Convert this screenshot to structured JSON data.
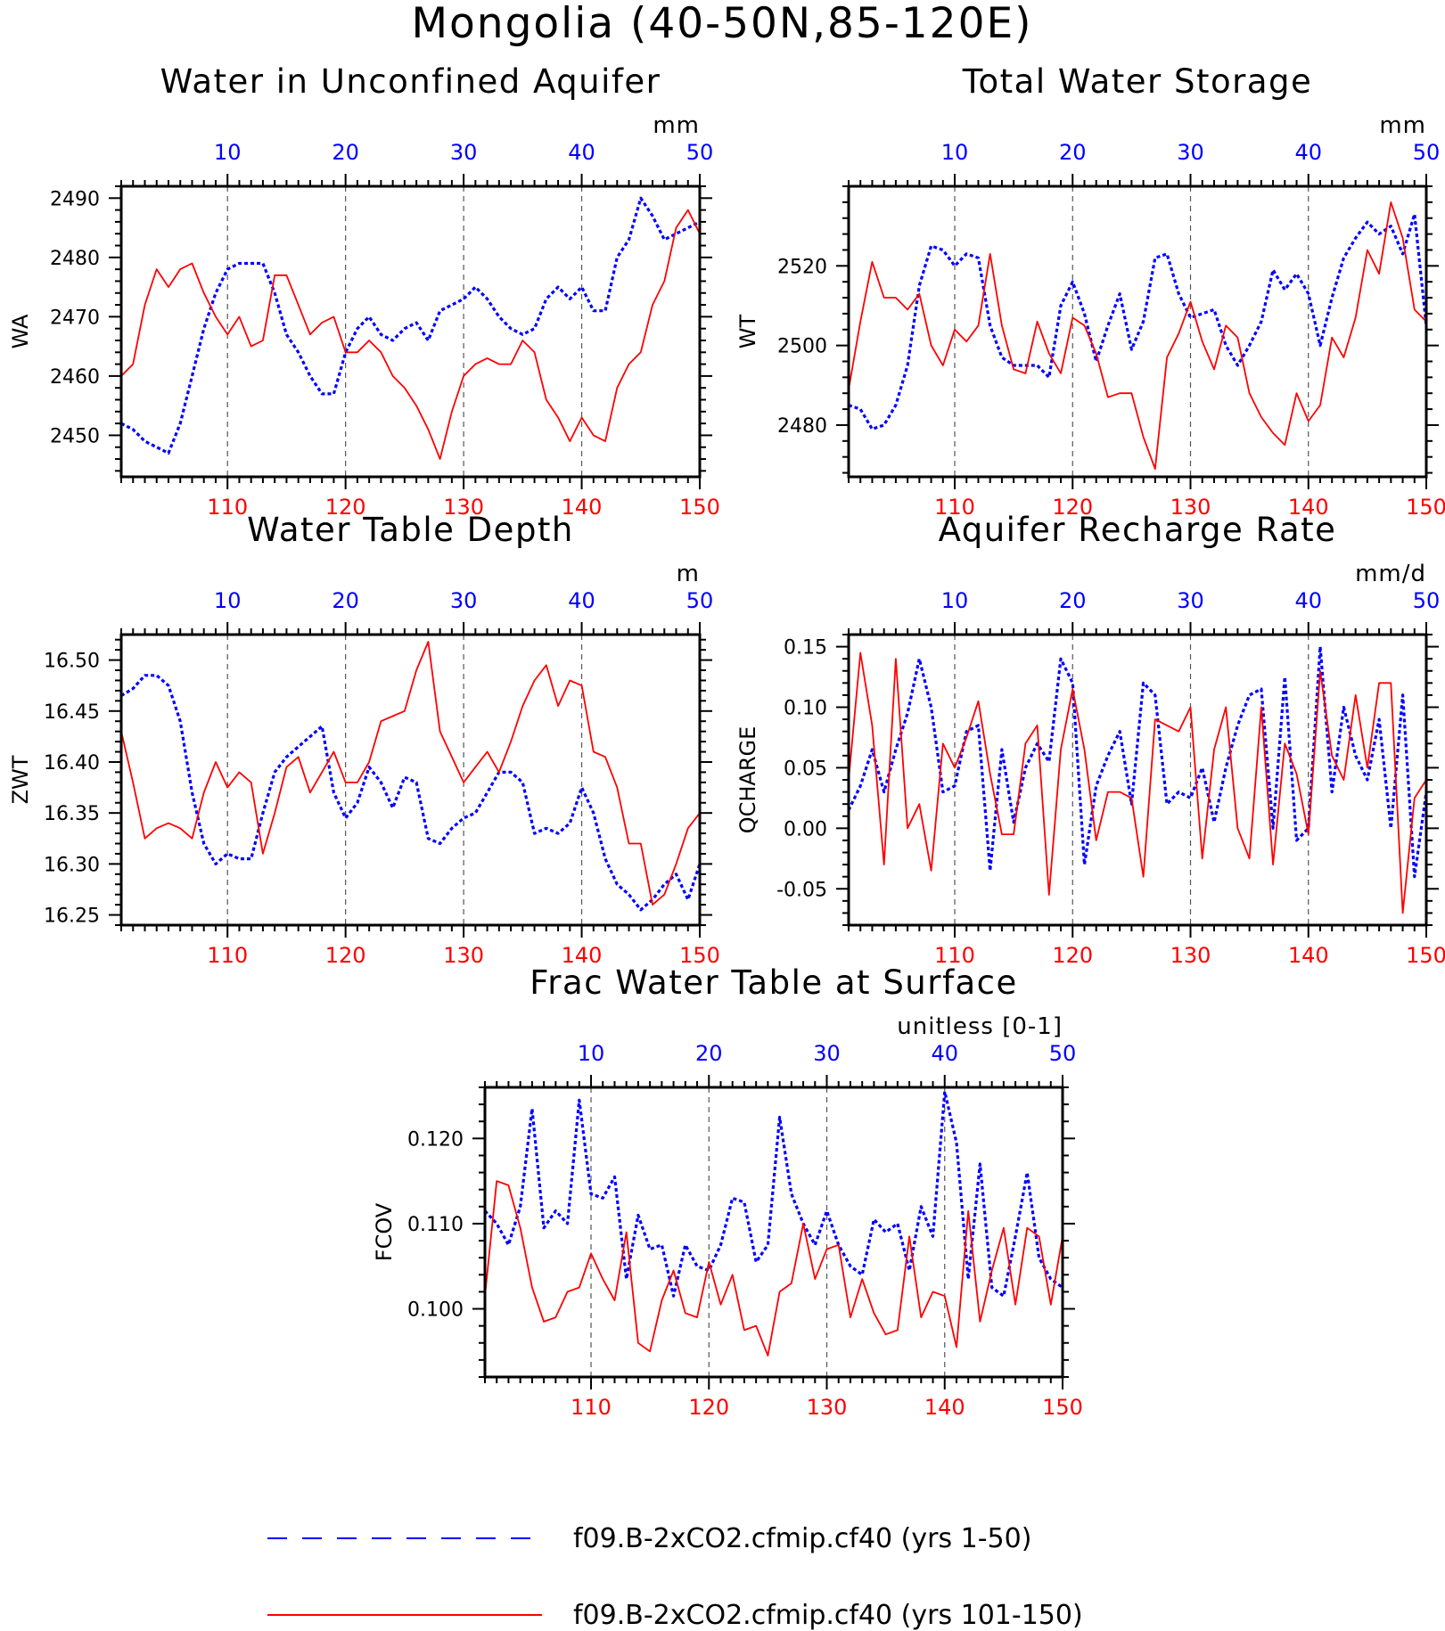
{
  "figure": {
    "title": "Mongolia (40-50N,85-120E)"
  },
  "colors": {
    "series_a": "#0000ff",
    "series_b": "#ff0000",
    "axis": "#000000",
    "grid": "#555555"
  },
  "legend": {
    "items": [
      {
        "label": "f09.B-2xCO2.cfmip.cf40 (yrs 1-50)",
        "style": "dashed",
        "color": "#0000ff"
      },
      {
        "label": "f09.B-2xCO2.cfmip.cf40 (yrs 101-150)",
        "style": "solid",
        "color": "#ff0000"
      }
    ]
  },
  "chart_data": [
    {
      "type": "line",
      "title": "Water in Unconfined Aquifer",
      "ylabel": "WA",
      "units": "mm",
      "top_x": {
        "ticks": [
          10,
          20,
          30,
          40,
          50
        ],
        "range": [
          1,
          50
        ]
      },
      "bottom_x": {
        "ticks": [
          110,
          120,
          130,
          140,
          150
        ],
        "range": [
          101,
          150
        ]
      },
      "ylim": [
        2443,
        2492
      ],
      "yticks": [
        2450,
        2460,
        2470,
        2480,
        2490
      ],
      "ytick_labels": [
        "2450",
        "2460",
        "2470",
        "2480",
        "2490"
      ],
      "grid_x": [
        10,
        20,
        30,
        40
      ],
      "series": [
        {
          "name": "f09.B-2xCO2.cfmip.cf40 (yrs 1-50)",
          "values": [
            2452,
            2451,
            2449,
            2448,
            2447,
            2452,
            2460,
            2468,
            2474,
            2478,
            2479,
            2479,
            2479,
            2474,
            2467,
            2464,
            2460,
            2457,
            2457,
            2464,
            2468,
            2470,
            2467,
            2466,
            2468,
            2469,
            2466,
            2471,
            2472,
            2473,
            2475,
            2473,
            2470,
            2468,
            2467,
            2468,
            2473,
            2475,
            2473,
            2475,
            2471,
            2471,
            2480,
            2483,
            2490,
            2487,
            2483,
            2484,
            2485,
            2486
          ]
        },
        {
          "name": "f09.B-2xCO2.cfmip.cf40 (yrs 101-150)",
          "values": [
            2460,
            2462,
            2472,
            2478,
            2475,
            2478,
            2479,
            2474,
            2470,
            2467,
            2470,
            2465,
            2466,
            2477,
            2477,
            2472,
            2467,
            2469,
            2470,
            2464,
            2464,
            2466,
            2464,
            2460,
            2458,
            2455,
            2451,
            2446,
            2454,
            2460,
            2462,
            2463,
            2462,
            2462,
            2466,
            2464,
            2456,
            2453,
            2449,
            2453,
            2450,
            2449,
            2458,
            2462,
            2464,
            2472,
            2476,
            2485,
            2488,
            2484
          ]
        }
      ]
    },
    {
      "type": "line",
      "title": "Total Water Storage",
      "ylabel": "WT",
      "units": "mm",
      "top_x": {
        "ticks": [
          10,
          20,
          30,
          40,
          50
        ],
        "range": [
          1,
          50
        ]
      },
      "bottom_x": {
        "ticks": [
          110,
          120,
          130,
          140,
          150
        ],
        "range": [
          101,
          150
        ]
      },
      "ylim": [
        2467,
        2540
      ],
      "yticks": [
        2480,
        2500,
        2520
      ],
      "ytick_labels": [
        "2480",
        "2500",
        "2520"
      ],
      "grid_x": [
        10,
        20,
        30,
        40
      ],
      "series": [
        {
          "name": "f09.B-2xCO2.cfmip.cf40 (yrs 1-50)",
          "values": [
            2485,
            2484,
            2479,
            2480,
            2485,
            2495,
            2515,
            2525,
            2524,
            2520,
            2523,
            2522,
            2505,
            2497,
            2495,
            2495,
            2495,
            2492,
            2510,
            2516,
            2508,
            2496,
            2505,
            2513,
            2499,
            2506,
            2522,
            2523,
            2513,
            2507,
            2508,
            2509,
            2500,
            2495,
            2500,
            2506,
            2519,
            2514,
            2518,
            2513,
            2500,
            2512,
            2522,
            2527,
            2531,
            2528,
            2530,
            2523,
            2533,
            2505
          ]
        },
        {
          "name": "f09.B-2xCO2.cfmip.cf40 (yrs 101-150)",
          "values": [
            2489,
            2506,
            2521,
            2512,
            2512,
            2509,
            2513,
            2500,
            2495,
            2504,
            2501,
            2505,
            2523,
            2505,
            2494,
            2493,
            2506,
            2498,
            2493,
            2507,
            2505,
            2498,
            2487,
            2488,
            2488,
            2477,
            2469,
            2497,
            2503,
            2511,
            2501,
            2494,
            2505,
            2502,
            2488,
            2482,
            2478,
            2475,
            2488,
            2481,
            2485,
            2502,
            2497,
            2507,
            2524,
            2518,
            2536,
            2527,
            2509,
            2506
          ]
        }
      ]
    },
    {
      "type": "line",
      "title": "Water Table Depth",
      "ylabel": "ZWT",
      "units": "m",
      "top_x": {
        "ticks": [
          10,
          20,
          30,
          40,
          50
        ],
        "range": [
          1,
          50
        ]
      },
      "bottom_x": {
        "ticks": [
          110,
          120,
          130,
          140,
          150
        ],
        "range": [
          101,
          150
        ]
      },
      "ylim": [
        16.24,
        16.525
      ],
      "yticks": [
        16.25,
        16.3,
        16.35,
        16.4,
        16.45,
        16.5
      ],
      "ytick_labels": [
        "16.25",
        "16.30",
        "16.35",
        "16.40",
        "16.45",
        "16.50"
      ],
      "grid_x": [
        10,
        20,
        30,
        40
      ],
      "series": [
        {
          "name": "f09.B-2xCO2.cfmip.cf40 (yrs 1-50)",
          "values": [
            16.465,
            16.472,
            16.485,
            16.485,
            16.475,
            16.44,
            16.37,
            16.32,
            16.3,
            16.31,
            16.305,
            16.305,
            16.35,
            16.39,
            16.405,
            16.415,
            16.425,
            16.435,
            16.37,
            16.345,
            16.36,
            16.395,
            16.38,
            16.355,
            16.385,
            16.38,
            16.325,
            16.32,
            16.335,
            16.345,
            16.35,
            16.37,
            16.39,
            16.39,
            16.38,
            16.33,
            16.335,
            16.33,
            16.34,
            16.375,
            16.35,
            16.305,
            16.28,
            16.27,
            16.255,
            16.265,
            16.28,
            16.29,
            16.265,
            16.3
          ]
        },
        {
          "name": "f09.B-2xCO2.cfmip.cf40 (yrs 101-150)",
          "values": [
            16.43,
            16.38,
            16.325,
            16.335,
            16.34,
            16.335,
            16.325,
            16.37,
            16.4,
            16.375,
            16.39,
            16.38,
            16.31,
            16.35,
            16.395,
            16.405,
            16.37,
            16.39,
            16.41,
            16.38,
            16.38,
            16.4,
            16.44,
            16.445,
            16.45,
            16.49,
            16.518,
            16.43,
            16.405,
            16.38,
            16.395,
            16.41,
            16.39,
            16.42,
            16.455,
            16.48,
            16.495,
            16.455,
            16.48,
            16.475,
            16.41,
            16.405,
            16.375,
            16.32,
            16.32,
            16.26,
            16.27,
            16.3,
            16.335,
            16.35
          ]
        }
      ]
    },
    {
      "type": "line",
      "title": "Aquifer Recharge Rate",
      "ylabel": "QCHARGE",
      "units": "mm/d",
      "top_x": {
        "ticks": [
          10,
          20,
          30,
          40,
          50
        ],
        "range": [
          1,
          50
        ]
      },
      "bottom_x": {
        "ticks": [
          110,
          120,
          130,
          140,
          150
        ],
        "range": [
          101,
          150
        ]
      },
      "ylim": [
        -0.08,
        0.16
      ],
      "yticks": [
        -0.05,
        0.0,
        0.05,
        0.1,
        0.15
      ],
      "ytick_labels": [
        "-0.05",
        "0.00",
        "0.05",
        "0.10",
        "0.15"
      ],
      "grid_x": [
        10,
        20,
        30,
        40
      ],
      "series": [
        {
          "name": "f09.B-2xCO2.cfmip.cf40 (yrs 1-50)",
          "values": [
            0.015,
            0.035,
            0.065,
            0.03,
            0.065,
            0.095,
            0.14,
            0.1,
            0.03,
            0.035,
            0.08,
            0.085,
            -0.035,
            0.065,
            0.005,
            0.05,
            0.07,
            0.055,
            0.14,
            0.12,
            -0.03,
            0.035,
            0.06,
            0.08,
            0.02,
            0.12,
            0.11,
            0.02,
            0.03,
            0.025,
            0.05,
            0.005,
            0.05,
            0.085,
            0.11,
            0.115,
            0.0,
            0.125,
            -0.01,
            0.0,
            0.15,
            0.03,
            0.1,
            0.06,
            0.04,
            0.09,
            0.0,
            0.11,
            -0.04,
            0.03
          ]
        },
        {
          "name": "f09.B-2xCO2.cfmip.cf40 (yrs 101-150)",
          "values": [
            0.04,
            0.145,
            0.085,
            -0.03,
            0.14,
            0.0,
            0.02,
            -0.035,
            0.07,
            0.05,
            0.075,
            0.105,
            0.045,
            -0.005,
            -0.005,
            0.07,
            0.085,
            -0.055,
            0.065,
            0.115,
            0.065,
            -0.01,
            0.03,
            0.03,
            0.025,
            -0.04,
            0.09,
            0.085,
            0.08,
            0.1,
            -0.025,
            0.065,
            0.1,
            0.0,
            -0.025,
            0.1,
            -0.03,
            0.07,
            0.045,
            -0.005,
            0.13,
            0.06,
            0.04,
            0.11,
            0.05,
            0.12,
            0.12,
            -0.07,
            0.025,
            0.04
          ]
        }
      ]
    },
    {
      "type": "line",
      "title": "Frac Water Table at Surface",
      "ylabel": "FCOV",
      "units": "unitless [0-1]",
      "top_x": {
        "ticks": [
          10,
          20,
          30,
          40,
          50
        ],
        "range": [
          1,
          50
        ]
      },
      "bottom_x": {
        "ticks": [
          110,
          120,
          130,
          140,
          150
        ],
        "range": [
          101,
          150
        ]
      },
      "ylim": [
        0.092,
        0.126
      ],
      "yticks": [
        0.1,
        0.11,
        0.12
      ],
      "ytick_labels": [
        "0.100",
        "0.110",
        "0.120"
      ],
      "grid_x": [
        10,
        20,
        30,
        40
      ],
      "series": [
        {
          "name": "f09.B-2xCO2.cfmip.cf40 (yrs 1-50)",
          "values": [
            0.1115,
            0.11,
            0.1075,
            0.112,
            0.1235,
            0.1095,
            0.1115,
            0.11,
            0.1245,
            0.1135,
            0.113,
            0.1155,
            0.1035,
            0.111,
            0.107,
            0.1075,
            0.1015,
            0.1075,
            0.105,
            0.1045,
            0.1075,
            0.113,
            0.1125,
            0.1055,
            0.1075,
            0.1225,
            0.1135,
            0.11,
            0.1075,
            0.1115,
            0.1075,
            0.105,
            0.104,
            0.1105,
            0.109,
            0.11,
            0.1045,
            0.112,
            0.1085,
            0.1255,
            0.1195,
            0.1035,
            0.117,
            0.1025,
            0.1015,
            0.1085,
            0.116,
            0.106,
            0.1035,
            0.1025
          ]
        },
        {
          "name": "f09.B-2xCO2.cfmip.cf40 (yrs 101-150)",
          "values": [
            0.1015,
            0.115,
            0.1145,
            0.1095,
            0.1025,
            0.0985,
            0.099,
            0.102,
            0.1025,
            0.1065,
            0.1035,
            0.101,
            0.109,
            0.096,
            0.095,
            0.101,
            0.1045,
            0.0995,
            0.099,
            0.1055,
            0.1005,
            0.104,
            0.0975,
            0.098,
            0.0945,
            0.102,
            0.103,
            0.11,
            0.1035,
            0.107,
            0.1075,
            0.099,
            0.1035,
            0.0995,
            0.097,
            0.0975,
            0.1085,
            0.099,
            0.102,
            0.1015,
            0.0955,
            0.1115,
            0.0985,
            0.1045,
            0.1095,
            0.1005,
            0.1095,
            0.1085,
            0.1005,
            0.1085
          ]
        }
      ]
    }
  ]
}
